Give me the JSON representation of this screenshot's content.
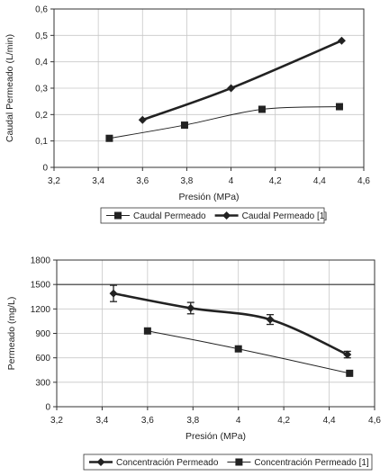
{
  "chart_data": [
    {
      "type": "line",
      "title": "",
      "xlabel": "Presión (MPa)",
      "ylabel": "Caudal Permeado (L/min)",
      "xlim": [
        3.2,
        4.6
      ],
      "ylim": [
        0,
        0.6
      ],
      "x_ticks": [
        "3,2",
        "3,4",
        "3,6",
        "3,8",
        "4",
        "4,2",
        "4,4",
        "4,6"
      ],
      "y_ticks": [
        "0",
        "0,1",
        "0,2",
        "0,3",
        "0,4",
        "0,5",
        "0,6"
      ],
      "grid": true,
      "legend_position": "bottom",
      "series": [
        {
          "name": "Caudal Permeado",
          "marker": "square",
          "line": "thin",
          "points": [
            [
              3.45,
              0.11
            ],
            [
              3.79,
              0.16
            ],
            [
              4.14,
              0.22
            ],
            [
              4.49,
              0.23
            ]
          ]
        },
        {
          "name": "Caudal Permeado [1]",
          "marker": "diamond",
          "line": "thick",
          "points": [
            [
              3.6,
              0.18
            ],
            [
              4.0,
              0.3
            ],
            [
              4.5,
              0.48
            ]
          ]
        }
      ]
    },
    {
      "type": "line",
      "title": "",
      "xlabel": "Presión (MPa)",
      "ylabel": "Permeado (mg/L)",
      "xlim": [
        3.2,
        4.6
      ],
      "ylim": [
        0,
        1800
      ],
      "x_ticks": [
        "3,2",
        "3,4",
        "3,6",
        "3,8",
        "4",
        "4,2",
        "4,4",
        "4,6"
      ],
      "y_ticks": [
        "0",
        "300",
        "600",
        "900",
        "1200",
        "1500",
        "1800"
      ],
      "grid": true,
      "reference_line": 1500,
      "legend_position": "bottom",
      "series": [
        {
          "name": "Concentración Permeado",
          "marker": "diamond",
          "line": "thick",
          "points": [
            [
              3.45,
              1390
            ],
            [
              3.79,
              1210
            ],
            [
              4.14,
              1070
            ],
            [
              4.48,
              640
            ]
          ],
          "error": [
            100,
            70,
            60,
            40
          ]
        },
        {
          "name": "Concentración Permeado [1]",
          "marker": "square",
          "line": "thin",
          "points": [
            [
              3.6,
              930
            ],
            [
              4.0,
              710
            ],
            [
              4.49,
              410
            ]
          ]
        }
      ]
    }
  ]
}
